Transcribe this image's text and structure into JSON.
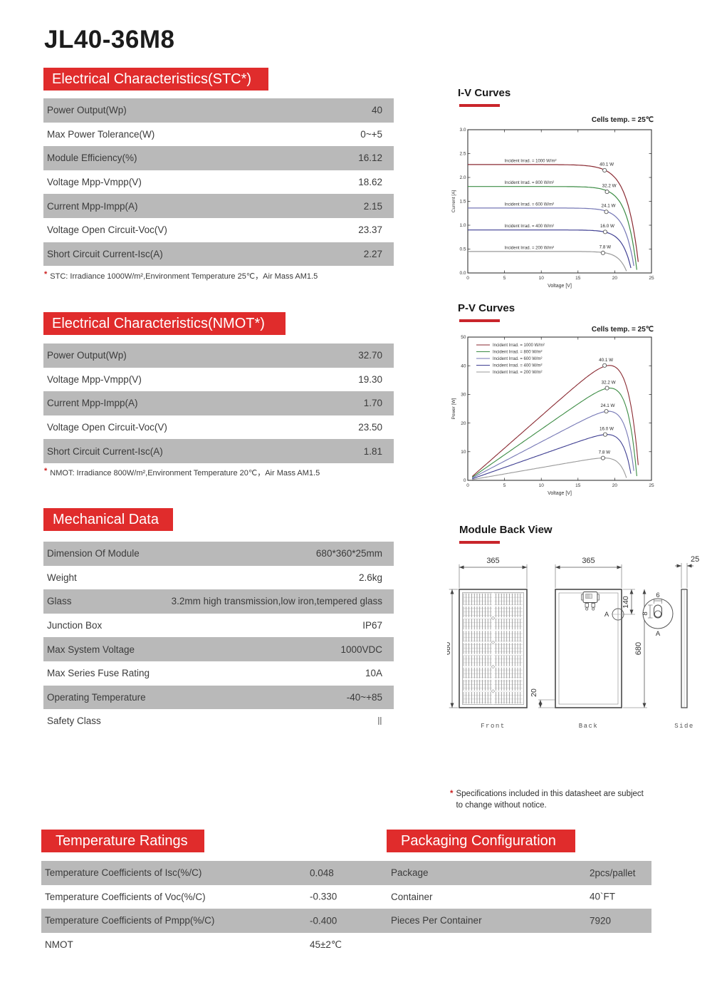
{
  "page": {
    "title": "JL40-36M8"
  },
  "colors": {
    "accent_red": "#e02c2c",
    "row_gray": "#b9b9b9"
  },
  "sections": {
    "stc": {
      "header": "Electrical Characteristics(STC*)",
      "rows": [
        {
          "label": "Power Output(Wp)",
          "value": "40"
        },
        {
          "label": "Max Power Tolerance(W)",
          "value": "0~+5"
        },
        {
          "label": "Module Efficiency(%)",
          "value": "16.12"
        },
        {
          "label": "Voltage Mpp-Vmpp(V)",
          "value": "18.62"
        },
        {
          "label": "Current Mpp-Impp(A)",
          "value": "2.15"
        },
        {
          "label": "Voltage Open Circuit-Voc(V)",
          "value": "23.37"
        },
        {
          "label": "Short Circuit Current-Isc(A)",
          "value": "2.27"
        }
      ],
      "note_star": "*",
      "footnote": "STC: Irradiance 1000W/m²,Environment Temperature 25℃，Air Mass AM1.5"
    },
    "nmot": {
      "header": "Electrical Characteristics(NMOT*)",
      "rows": [
        {
          "label": "Power Output(Wp)",
          "value": "32.70"
        },
        {
          "label": "Voltage Mpp-Vmpp(V)",
          "value": "19.30"
        },
        {
          "label": "Current Mpp-Impp(A)",
          "value": "1.70"
        },
        {
          "label": "Voltage Open Circuit-Voc(V)",
          "value": "23.50"
        },
        {
          "label": "Short Circuit Current-Isc(A)",
          "value": "1.81"
        }
      ],
      "note_star": "*",
      "footnote": "NMOT: Irradiance 800W/m²,Environment Temperature 20℃，Air Mass AM1.5"
    },
    "mechanical": {
      "header": "Mechanical Data",
      "rows": [
        {
          "label": "Dimension Of Module",
          "value": "680*360*25mm"
        },
        {
          "label": "Weight",
          "value": "2.6kg"
        },
        {
          "label": "Glass",
          "value": "3.2mm high transmission,low iron,tempered glass"
        },
        {
          "label": "Junction Box",
          "value": "IP67"
        },
        {
          "label": "Max System Voltage",
          "value": "1000VDC"
        },
        {
          "label": "Max Series Fuse Rating",
          "value": "10A"
        },
        {
          "label": "Operating Temperature",
          "value": "-40~+85"
        },
        {
          "label": "Safety Class",
          "value": "Ⅱ"
        }
      ]
    },
    "temperature": {
      "header": "Temperature Ratings",
      "rows": [
        {
          "label": "Temperature Coefficients of Isc(%/C)",
          "value": "0.048"
        },
        {
          "label": "Temperature Coefficients of Voc(%/C)",
          "value": "-0.330"
        },
        {
          "label": "Temperature Coefficients of Pmpp(%/C)",
          "value": "-0.400"
        },
        {
          "label": "NMOT",
          "value": "45±2℃"
        }
      ]
    },
    "packaging": {
      "header": "Packaging Configuration",
      "rows": [
        {
          "label": "Package",
          "value": "2pcs/pallet"
        },
        {
          "label": "Container",
          "value": "40`FT"
        },
        {
          "label": "Pieces Per Container",
          "value": "7920"
        }
      ]
    }
  },
  "spec_note": {
    "star": "*",
    "line1": "Specifications included in this datasheet are subject",
    "line2": "to change without notice."
  },
  "back_view": {
    "title": "Module Back View",
    "dims": {
      "front_width": "365",
      "front_height": "680",
      "back_width": "365",
      "jbox_offset": "140",
      "back_height": "680",
      "bottom_inset": "20",
      "side_thickness": "25",
      "hole_width": "6",
      "hole_height": "8",
      "detail_ref": "A"
    },
    "views": [
      "Front",
      "Back",
      "Side"
    ]
  },
  "chart_data": [
    {
      "type": "line",
      "id": "iv",
      "title": "I-V Curves",
      "subtitle": "Cells temp. = 25℃",
      "xlabel": "Voltage [V]",
      "ylabel": "Current [A]",
      "xlim": [
        0,
        25
      ],
      "ylim": [
        0,
        3.0
      ],
      "xticks": [
        0,
        5,
        10,
        15,
        20,
        25
      ],
      "yticks": [
        "0.0",
        "0.5",
        "1.0",
        "1.5",
        "2.0",
        "2.5",
        "3.0"
      ],
      "grid": false,
      "series": [
        {
          "name": "Incident Irrad. = 1000 W/m²",
          "color": "#8a2a32",
          "isc": 2.27,
          "voc": 23.37,
          "vmpp": 18.62,
          "impp": 2.15,
          "mpp_label": "40.1 W"
        },
        {
          "name": "Incident Irrad. = 800 W/m²",
          "color": "#3c8c44",
          "isc": 1.81,
          "voc": 23.05,
          "vmpp": 18.95,
          "impp": 1.7,
          "mpp_label": "32.2 W"
        },
        {
          "name": "Incident Irrad. = 600 W/m²",
          "color": "#7577b5",
          "isc": 1.36,
          "voc": 22.75,
          "vmpp": 18.85,
          "impp": 1.28,
          "mpp_label": "24.1 W"
        },
        {
          "name": "Incident Irrad. = 400 W/m²",
          "color": "#3f3f92",
          "isc": 0.9,
          "voc": 22.35,
          "vmpp": 18.7,
          "impp": 0.86,
          "mpp_label": "16.0 W"
        },
        {
          "name": "Incident Irrad. = 200 W/m²",
          "color": "#9a9a9a",
          "isc": 0.45,
          "voc": 21.7,
          "vmpp": 18.4,
          "impp": 0.42,
          "mpp_label": "7.8 W"
        }
      ]
    },
    {
      "type": "line",
      "id": "pv",
      "title": "P-V Curves",
      "subtitle": "Cells temp. = 25℃",
      "xlabel": "Voltage [V]",
      "ylabel": "Power [W]",
      "xlim": [
        0,
        25
      ],
      "ylim": [
        0,
        50
      ],
      "xticks": [
        0,
        5,
        10,
        15,
        20,
        25
      ],
      "yticks": [
        "0",
        "10",
        "20",
        "30",
        "40",
        "50"
      ],
      "grid": false,
      "legend_position": "top-left",
      "series": [
        {
          "name": "Incident Irrad. = 1000 W/m²",
          "color": "#8a2a32",
          "isc": 2.27,
          "voc": 23.37,
          "vmpp": 18.62,
          "pmax": 40.1,
          "mpp_label": "40.1 W"
        },
        {
          "name": "Incident Irrad. = 800 W/m²",
          "color": "#3c8c44",
          "isc": 1.81,
          "voc": 23.05,
          "vmpp": 18.95,
          "pmax": 32.2,
          "mpp_label": "32.2 W"
        },
        {
          "name": "Incident Irrad. = 600 W/m²",
          "color": "#7577b5",
          "isc": 1.36,
          "voc": 22.75,
          "vmpp": 18.85,
          "pmax": 24.1,
          "mpp_label": "24.1 W"
        },
        {
          "name": "Incident Irrad. = 400 W/m²",
          "color": "#3f3f92",
          "isc": 0.9,
          "voc": 22.35,
          "vmpp": 18.7,
          "pmax": 16.0,
          "mpp_label": "16.0 W"
        },
        {
          "name": "Incident Irrad. = 200 W/m²",
          "color": "#9a9a9a",
          "isc": 0.45,
          "voc": 21.7,
          "vmpp": 18.4,
          "pmax": 7.8,
          "mpp_label": "7.8 W"
        }
      ]
    }
  ]
}
